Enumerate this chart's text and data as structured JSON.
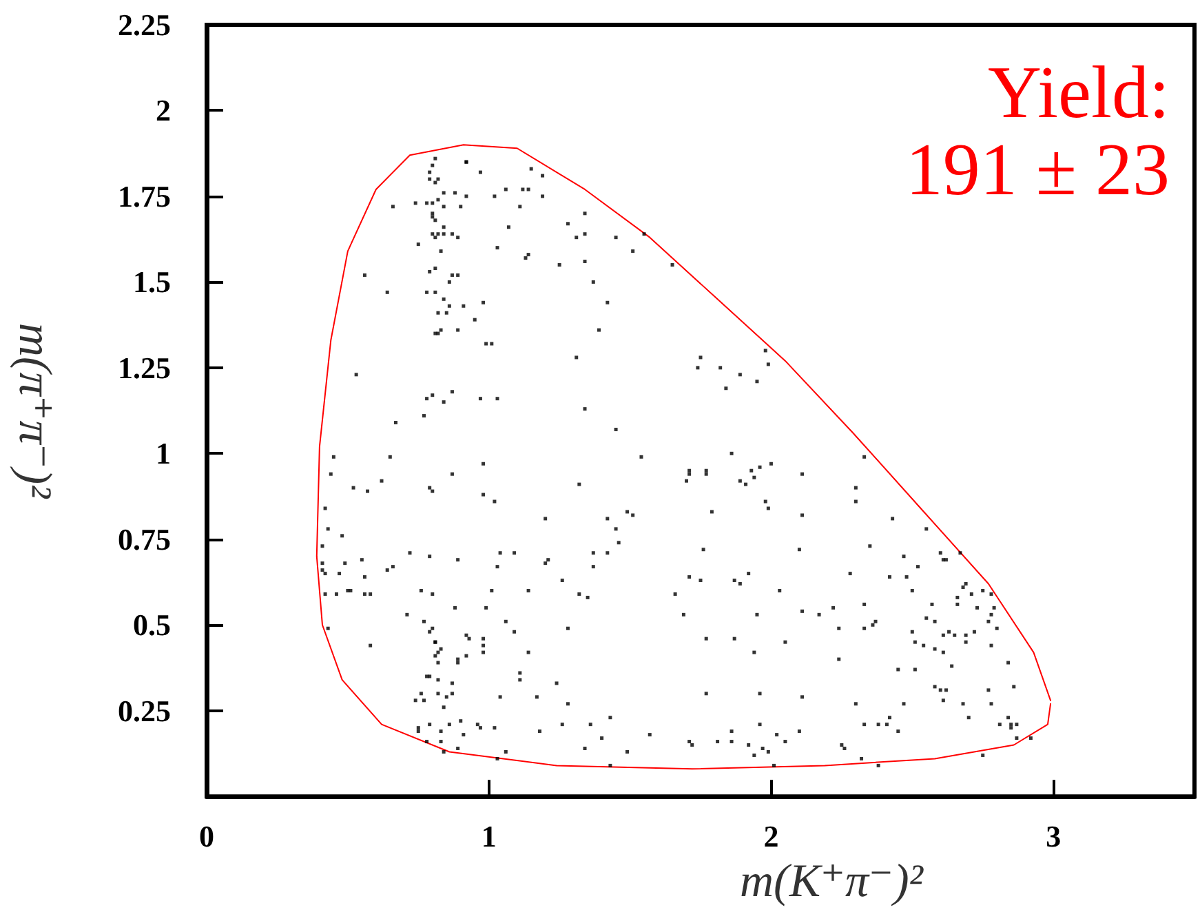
{
  "chart_data": {
    "type": "scatter",
    "xlabel": "m(K⁺π⁻)²",
    "ylabel": "m(π⁺π⁻)²",
    "annotations": [
      "Yield:",
      "191 ± 23"
    ],
    "xlim": [
      0,
      3.5
    ],
    "xticks": [
      0,
      1,
      2,
      3
    ],
    "ylim": [
      0,
      2.25
    ],
    "yticks": [
      0.25,
      0.5,
      0.75,
      1,
      1.25,
      1.5,
      1.75,
      2,
      2.25
    ],
    "grid": false,
    "marker": "square",
    "series": [
      {
        "type": "line",
        "color": "#ff0000",
        "marker": "none",
        "line_style": "solid",
        "x": [
          2.99,
          2.93,
          2.77,
          2.53,
          2.29,
          2.05,
          1.81,
          1.57,
          1.34,
          1.1,
          0.91,
          0.72,
          0.6,
          0.5,
          0.44,
          0.4,
          0.39,
          0.41,
          0.48,
          0.62,
          0.86,
          1.24,
          1.72,
          2.19,
          2.58,
          2.86,
          2.98,
          2.99
        ],
        "values": [
          0.28,
          0.42,
          0.62,
          0.84,
          1.06,
          1.27,
          1.45,
          1.63,
          1.77,
          1.89,
          1.9,
          1.87,
          1.77,
          1.59,
          1.33,
          1.02,
          0.7,
          0.5,
          0.34,
          0.21,
          0.13,
          0.09,
          0.08,
          0.09,
          0.11,
          0.15,
          0.21,
          0.27
        ]
      },
      {
        "color": "#000000",
        "x": [
          0.81,
          0.8,
          0.79,
          0.92,
          0.92,
          0.97,
          0.79,
          0.82,
          0.81,
          0.84,
          0.88,
          0.92,
          1.02,
          1.06,
          1.12,
          1.14,
          1.15,
          1.19,
          1.19,
          1.11,
          0.74,
          0.78,
          0.8,
          0.82,
          0.84,
          0.9,
          0.66,
          0.8,
          0.8,
          0.81,
          0.8,
          0.82,
          0.84,
          0.84,
          0.87,
          0.89,
          0.81,
          0.75,
          0.83,
          1.07,
          1.03,
          1.13,
          1.14,
          1.25,
          1.28,
          1.31,
          1.34,
          1.34,
          1.34,
          1.45,
          1.37,
          1.42,
          1.39,
          1.31,
          1.34,
          1.45,
          0.56,
          0.64,
          0.79,
          0.81,
          0.87,
          0.89,
          0.86,
          0.78,
          0.81,
          0.84,
          0.86,
          0.91,
          0.98,
          0.82,
          0.85,
          0.95,
          0.81,
          0.82,
          0.83,
          0.89,
          0.99,
          1.01,
          0.53,
          0.78,
          0.8,
          0.87,
          0.84,
          0.97,
          1.03,
          0.67,
          0.77,
          0.45,
          0.65,
          1.55,
          1.51,
          1.65,
          1.98,
          1.99,
          1.75,
          1.74,
          1.82,
          1.89,
          1.95,
          1.84,
          1.54,
          1.86,
          2.33,
          1.71,
          1.77,
          1.93,
          1.96,
          2.0,
          0.44,
          0.52,
          0.57,
          0.62,
          0.87,
          0.79,
          0.8,
          0.98,
          0.98,
          1.02,
          1.32,
          1.2,
          0.42,
          0.43,
          0.48,
          0.41,
          0.41,
          0.41,
          0.42,
          0.47,
          0.49,
          0.55,
          0.56,
          0.64,
          0.66,
          0.72,
          0.79,
          0.89,
          1.04,
          1.09,
          1.03,
          1.21,
          1.2,
          0.42,
          0.46,
          0.5,
          0.51,
          0.56,
          0.58,
          0.76,
          0.8,
          1.01,
          1.14,
          1.26,
          1.37,
          1.42,
          1.37,
          1.42,
          1.45,
          1.46,
          1.32,
          1.35,
          0.88,
          0.99,
          0.71,
          1.06,
          1.09,
          1.28,
          0.43,
          0.77,
          0.8,
          0.79,
          0.92,
          0.93,
          0.98,
          0.98,
          0.98,
          0.81,
          0.81,
          0.83,
          0.58,
          0.81,
          0.82,
          0.82,
          0.89,
          0.89,
          0.92,
          1.14,
          1.11,
          1.11,
          1.24,
          0.78,
          0.79,
          0.82,
          0.87,
          0.82,
          0.85,
          0.87,
          0.76,
          0.74,
          0.77,
          1.04,
          1.17,
          1.28,
          0.84,
          0.79,
          0.75,
          0.75,
          0.83,
          0.86,
          0.9,
          0.91,
          0.96,
          0.97,
          1.02,
          1.18,
          1.26,
          1.36,
          1.4,
          1.43,
          0.78,
          0.83,
          0.84,
          0.89,
          1.06,
          1.03,
          1.34,
          1.43,
          1.71,
          1.77,
          1.7,
          1.89,
          1.91,
          1.94,
          2.11,
          2.3,
          2.3,
          1.98,
          1.99,
          2.11,
          1.79,
          1.49,
          1.51,
          2.43,
          2.55,
          2.35,
          1.76,
          2.1,
          2.47,
          2.6,
          2.61,
          2.62,
          2.67,
          2.52,
          2.28,
          2.42,
          2.48,
          1.71,
          1.75,
          1.87,
          1.89,
          1.92,
          2.03,
          1.66,
          2.5,
          2.68,
          2.69,
          2.71,
          2.66,
          2.66,
          2.73,
          2.75,
          2.78,
          2.57,
          2.55,
          2.58,
          2.78,
          2.79,
          2.77,
          2.8,
          2.33,
          2.22,
          2.11,
          2.17,
          1.95,
          1.69,
          2.37,
          2.36,
          2.33,
          2.24,
          2.5,
          2.61,
          2.63,
          2.65,
          2.69,
          2.72,
          2.51,
          2.54,
          2.58,
          2.61,
          2.69,
          2.78,
          1.77,
          1.87,
          2.05,
          1.94,
          2.24,
          2.84,
          2.64,
          2.45,
          2.51,
          2.58,
          2.6,
          2.62,
          2.86,
          2.77,
          2.61,
          2.68,
          2.78,
          1.77,
          1.96,
          2.11,
          2.3,
          2.47,
          2.7,
          2.84,
          2.81,
          2.85,
          2.87,
          2.85,
          2.87,
          2.92,
          2.33,
          2.38,
          2.41,
          2.42,
          2.45,
          1.96,
          1.57,
          1.86,
          1.86,
          1.81,
          1.71,
          1.72,
          1.92,
          1.94,
          1.97,
          1.99,
          2.02,
          2.05,
          2.1,
          2.25,
          2.26,
          2.01,
          2.32,
          2.38,
          2.75,
          1.49
        ],
        "values": [
          1.86,
          1.84,
          1.82,
          1.85,
          1.85,
          1.82,
          1.8,
          1.8,
          1.79,
          1.76,
          1.76,
          1.75,
          1.75,
          1.77,
          1.77,
          1.77,
          1.83,
          1.81,
          1.75,
          1.72,
          1.73,
          1.73,
          1.73,
          1.74,
          1.72,
          1.72,
          1.72,
          1.7,
          1.69,
          1.68,
          1.64,
          1.64,
          1.66,
          1.64,
          1.64,
          1.63,
          1.63,
          1.61,
          1.59,
          1.66,
          1.6,
          1.57,
          1.58,
          1.55,
          1.67,
          1.63,
          1.7,
          1.64,
          1.56,
          1.63,
          1.5,
          1.44,
          1.36,
          1.28,
          1.13,
          1.07,
          1.52,
          1.47,
          1.53,
          1.54,
          1.52,
          1.52,
          1.5,
          1.47,
          1.47,
          1.45,
          1.43,
          1.43,
          1.44,
          1.41,
          1.41,
          1.39,
          1.35,
          1.35,
          1.36,
          1.36,
          1.32,
          1.32,
          1.23,
          1.16,
          1.17,
          1.18,
          1.15,
          1.16,
          1.16,
          1.09,
          1.11,
          0.99,
          0.99,
          1.64,
          1.59,
          1.55,
          1.3,
          1.26,
          1.28,
          1.25,
          1.25,
          1.23,
          1.21,
          1.19,
          0.99,
          1.0,
          0.99,
          0.94,
          0.94,
          0.95,
          0.96,
          0.97,
          0.94,
          0.9,
          0.89,
          0.92,
          0.94,
          0.9,
          0.89,
          0.97,
          0.88,
          0.86,
          0.91,
          0.81,
          0.84,
          0.78,
          0.76,
          0.73,
          0.68,
          0.66,
          0.65,
          0.65,
          0.68,
          0.69,
          0.64,
          0.66,
          0.67,
          0.71,
          0.7,
          0.69,
          0.71,
          0.71,
          0.67,
          0.69,
          0.68,
          0.59,
          0.59,
          0.6,
          0.6,
          0.59,
          0.59,
          0.6,
          0.59,
          0.6,
          0.6,
          0.63,
          0.71,
          0.71,
          0.67,
          0.81,
          0.78,
          0.74,
          0.59,
          0.58,
          0.55,
          0.55,
          0.53,
          0.51,
          0.48,
          0.49,
          0.49,
          0.51,
          0.49,
          0.48,
          0.47,
          0.46,
          0.46,
          0.44,
          0.42,
          0.45,
          0.45,
          0.43,
          0.44,
          0.41,
          0.42,
          0.39,
          0.4,
          0.39,
          0.41,
          0.42,
          0.36,
          0.34,
          0.33,
          0.35,
          0.35,
          0.34,
          0.33,
          0.3,
          0.29,
          0.3,
          0.3,
          0.28,
          0.28,
          0.29,
          0.29,
          0.27,
          0.26,
          0.21,
          0.2,
          0.19,
          0.19,
          0.21,
          0.22,
          0.18,
          0.21,
          0.2,
          0.2,
          0.19,
          0.21,
          0.21,
          0.17,
          0.23,
          0.16,
          0.16,
          0.13,
          0.14,
          0.13,
          0.11,
          0.14,
          0.09,
          0.95,
          0.95,
          0.92,
          0.92,
          0.91,
          0.93,
          0.94,
          0.9,
          0.86,
          0.86,
          0.84,
          0.82,
          0.83,
          0.83,
          0.82,
          0.81,
          0.78,
          0.73,
          0.72,
          0.72,
          0.7,
          0.71,
          0.69,
          0.69,
          0.71,
          0.67,
          0.65,
          0.64,
          0.64,
          0.64,
          0.63,
          0.63,
          0.62,
          0.65,
          0.6,
          0.59,
          0.6,
          0.61,
          0.62,
          0.59,
          0.58,
          0.56,
          0.55,
          0.6,
          0.59,
          0.56,
          0.52,
          0.51,
          0.53,
          0.55,
          0.51,
          0.49,
          0.56,
          0.55,
          0.54,
          0.53,
          0.53,
          0.53,
          0.51,
          0.5,
          0.49,
          0.49,
          0.48,
          0.47,
          0.48,
          0.47,
          0.47,
          0.48,
          0.45,
          0.44,
          0.43,
          0.42,
          0.45,
          0.44,
          0.46,
          0.46,
          0.45,
          0.42,
          0.4,
          0.39,
          0.38,
          0.37,
          0.37,
          0.32,
          0.31,
          0.31,
          0.32,
          0.31,
          0.28,
          0.27,
          0.27,
          0.3,
          0.3,
          0.29,
          0.27,
          0.27,
          0.23,
          0.23,
          0.21,
          0.21,
          0.21,
          0.2,
          0.17,
          0.17,
          0.21,
          0.21,
          0.21,
          0.23,
          0.19,
          0.21,
          0.18,
          0.19,
          0.16,
          0.16,
          0.16,
          0.15,
          0.15,
          0.12,
          0.14,
          0.13,
          0.18,
          0.16,
          0.19,
          0.15,
          0.14,
          0.09,
          0.11,
          0.09,
          0.12,
          0.13
        ]
      }
    ]
  }
}
